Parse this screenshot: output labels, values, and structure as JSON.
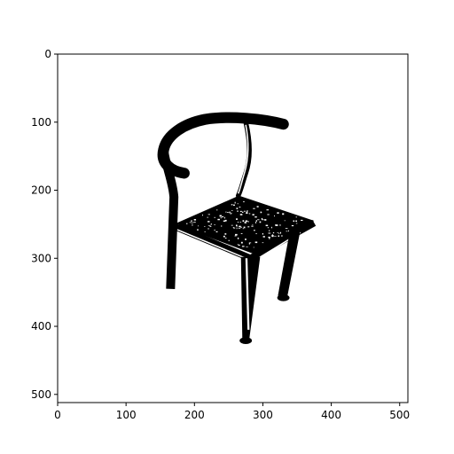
{
  "figure": {
    "background": "#ffffff",
    "axes_color": "#000000",
    "image_description_label": "binary chair silhouette"
  },
  "axes": {
    "xlim": [
      0,
      512
    ],
    "ylim": [
      512,
      0
    ],
    "x_ticks": [
      0,
      100,
      200,
      300,
      400,
      500
    ],
    "y_ticks": [
      0,
      100,
      200,
      300,
      400,
      500
    ],
    "x_tick_labels": [
      "0",
      "100",
      "200",
      "300",
      "400",
      "500"
    ],
    "y_tick_labels": [
      "0",
      "100",
      "200",
      "300",
      "400",
      "500"
    ],
    "origin": "top-left",
    "grid": false
  },
  "image": {
    "colors": {
      "foreground": "#000000",
      "background": "#ffffff"
    }
  }
}
